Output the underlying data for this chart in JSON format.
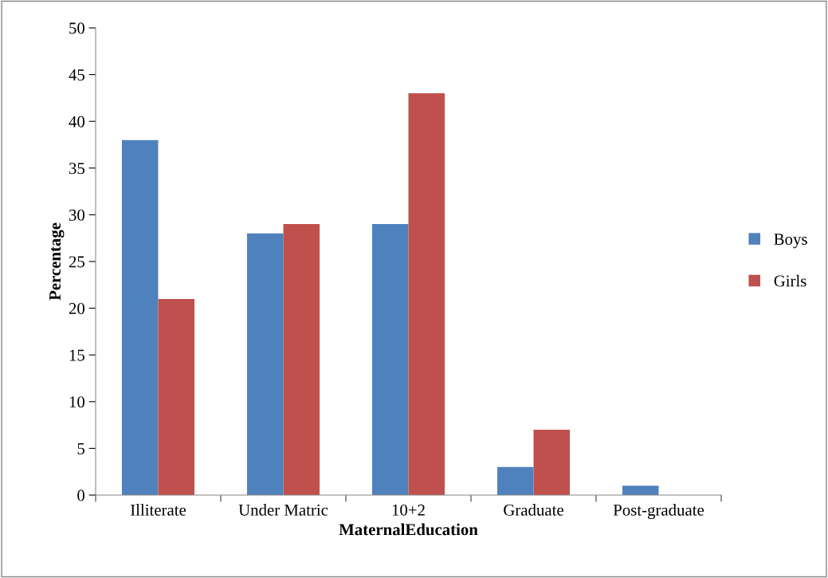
{
  "chart_data": {
    "type": "bar",
    "xlabel": "MaternalEducation",
    "ylabel": "Percentage",
    "categories": [
      "Illiterate",
      "Under Matric",
      "10+2",
      "Graduate",
      "Post-graduate"
    ],
    "series": [
      {
        "name": "Boys",
        "color": "#4f81bd",
        "values": [
          38,
          28,
          29,
          3,
          1
        ]
      },
      {
        "name": "Girls",
        "color": "#c0504d",
        "values": [
          21,
          29,
          43,
          7,
          0
        ]
      }
    ],
    "ylim": [
      0,
      50
    ],
    "yticks": [
      0,
      5,
      10,
      15,
      20,
      25,
      30,
      35,
      40,
      45,
      50
    ],
    "grid": false,
    "legend": "right"
  }
}
